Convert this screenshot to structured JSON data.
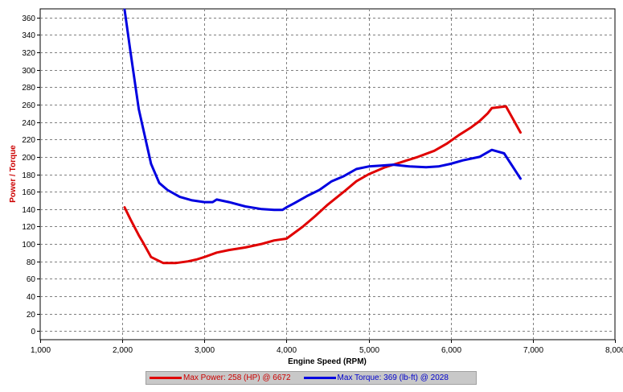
{
  "chart_data": {
    "type": "line",
    "xlabel": "Engine Speed (RPM)",
    "ylabel": "Power / Torque",
    "xlim": [
      1000,
      8000
    ],
    "ylim": [
      -10,
      370
    ],
    "xticks": [
      1000,
      2000,
      3000,
      4000,
      5000,
      6000,
      7000,
      8000
    ],
    "xtick_labels": [
      "1,000",
      "2,000",
      "3,000",
      "4,000",
      "5,000",
      "6,000",
      "7,000",
      "8,000"
    ],
    "yticks": [
      0,
      20,
      40,
      60,
      80,
      100,
      120,
      140,
      160,
      180,
      200,
      220,
      240,
      260,
      280,
      300,
      320,
      340,
      360
    ],
    "grid": true,
    "legend_position": "bottom-center",
    "series": [
      {
        "name": "Max Power: 258 (HP) @ 6672",
        "color": "#e00000",
        "x": [
          2028,
          2100,
          2200,
          2250,
          2350,
          2500,
          2650,
          2800,
          2900,
          3000,
          3150,
          3300,
          3500,
          3700,
          3850,
          4000,
          4100,
          4200,
          4350,
          4500,
          4700,
          4850,
          5000,
          5200,
          5400,
          5600,
          5800,
          5950,
          6100,
          6250,
          6350,
          6450,
          6500,
          6672,
          6850
        ],
        "values": [
          142,
          128,
          110,
          102,
          85,
          78,
          78,
          80,
          82,
          85,
          90,
          93,
          96,
          100,
          104,
          106,
          113,
          120,
          132,
          145,
          160,
          172,
          180,
          188,
          194,
          200,
          207,
          215,
          225,
          234,
          241,
          250,
          256,
          258,
          228
        ]
      },
      {
        "name": "Max Torque: 369 (lb-ft) @ 2028",
        "color": "#0000e0",
        "x": [
          2028,
          2100,
          2200,
          2350,
          2450,
          2550,
          2700,
          2850,
          3000,
          3100,
          3150,
          3300,
          3500,
          3700,
          3850,
          3950,
          4000,
          4100,
          4250,
          4400,
          4550,
          4700,
          4850,
          5000,
          5150,
          5300,
          5500,
          5700,
          5850,
          6000,
          6150,
          6350,
          6500,
          6650,
          6850
        ],
        "values": [
          369,
          320,
          255,
          192,
          170,
          162,
          154,
          150,
          148,
          148,
          151,
          148,
          143,
          140,
          139,
          139,
          142,
          147,
          155,
          162,
          172,
          178,
          186,
          189,
          190,
          191,
          189,
          188,
          189,
          192,
          196,
          200,
          208,
          204,
          175
        ]
      }
    ]
  }
}
